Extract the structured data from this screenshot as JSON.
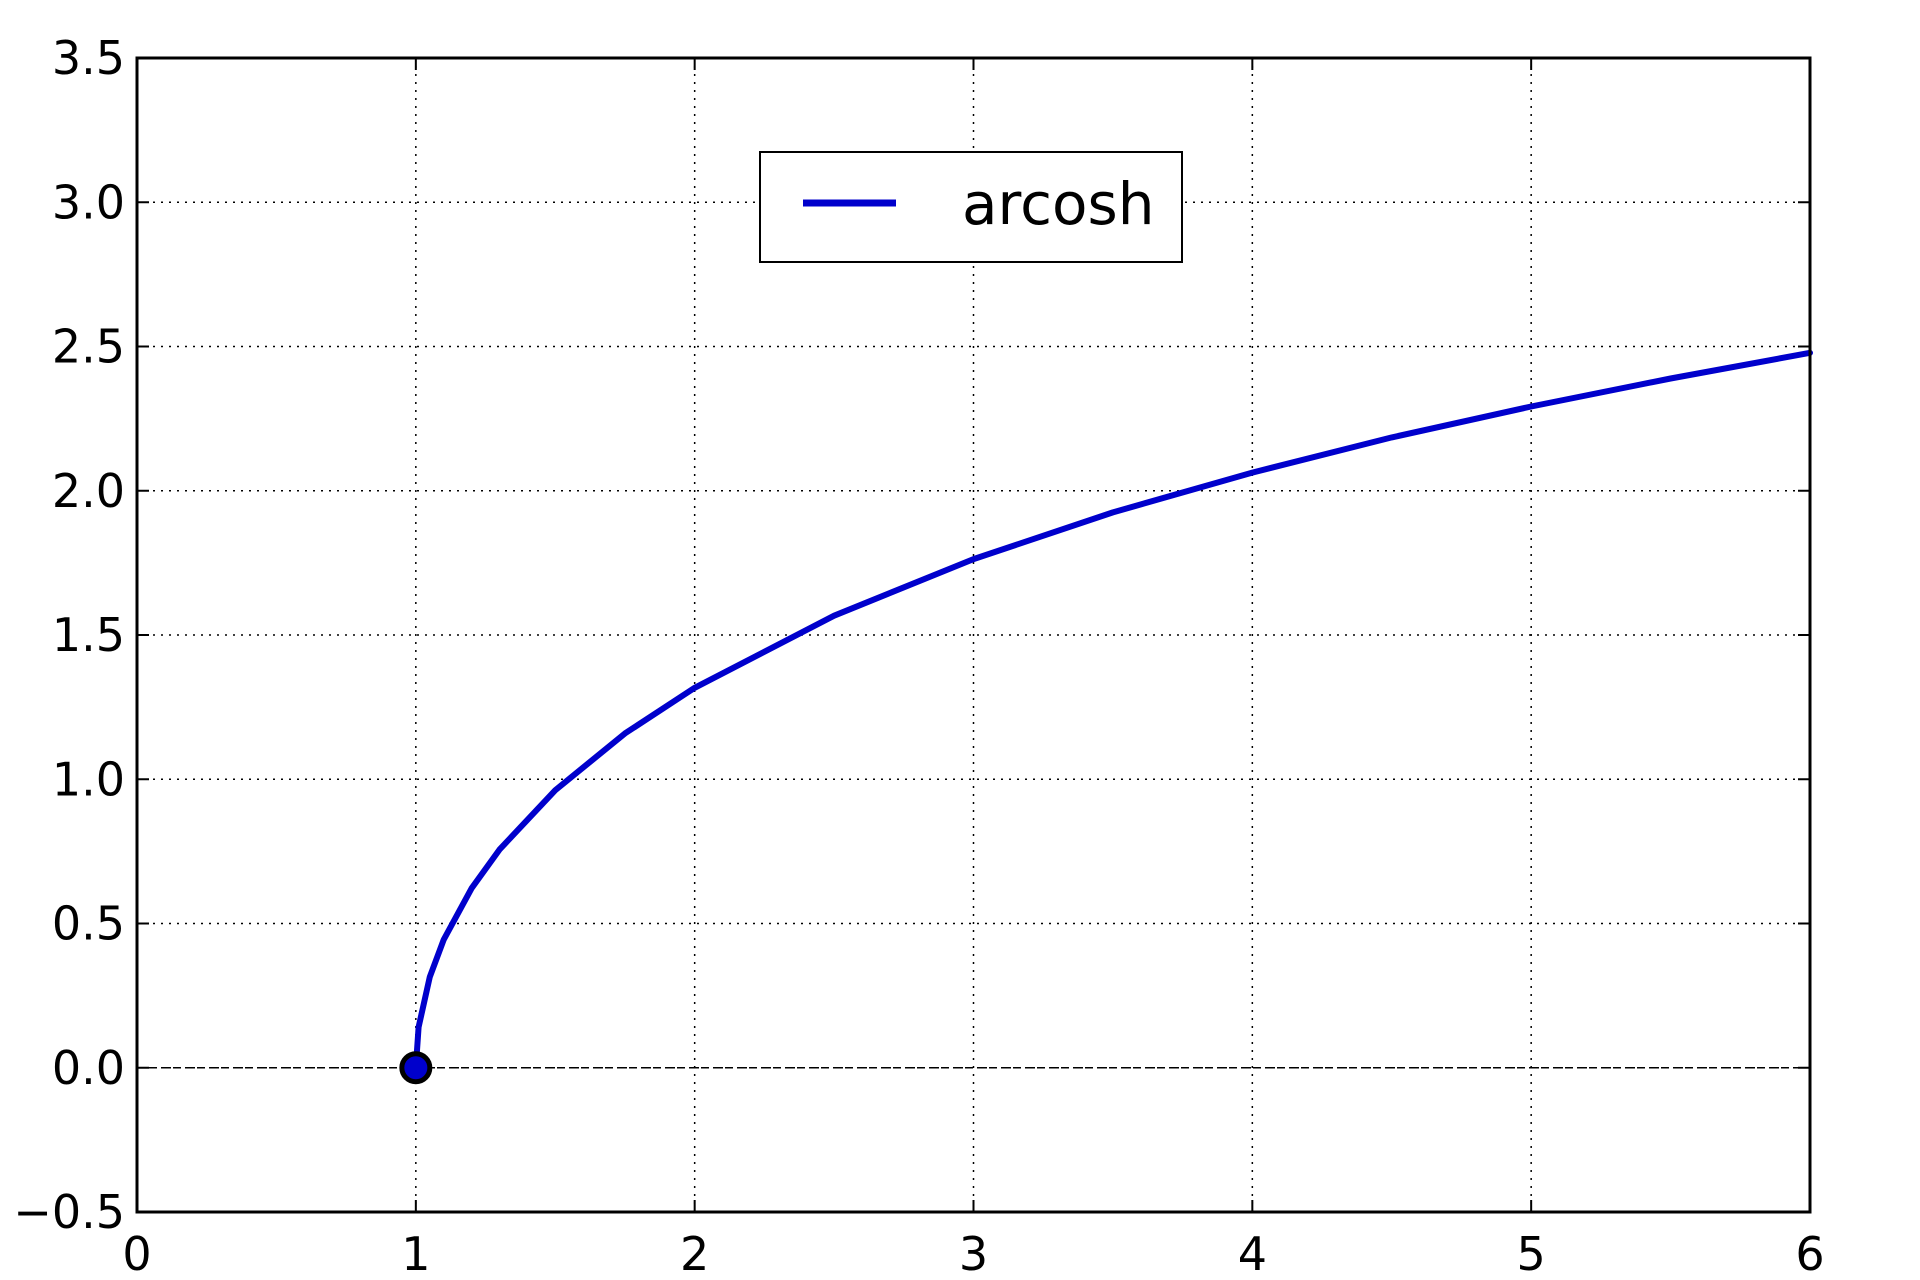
{
  "chart_data": {
    "type": "line",
    "title": "",
    "xlabel": "",
    "ylabel": "",
    "xlim": [
      0,
      6
    ],
    "ylim": [
      -0.5,
      3.5
    ],
    "grid": true,
    "legend_position": "top-center",
    "x_ticks": [
      0,
      1,
      2,
      3,
      4,
      5,
      6
    ],
    "x_tick_labels": [
      "0",
      "1",
      "2",
      "3",
      "4",
      "5",
      "6"
    ],
    "y_ticks": [
      -0.5,
      0.0,
      0.5,
      1.0,
      1.5,
      2.0,
      2.5,
      3.0,
      3.5
    ],
    "y_tick_labels": [
      "−0.5",
      "0.0",
      "0.5",
      "1.0",
      "1.5",
      "2.0",
      "2.5",
      "3.0",
      "3.5"
    ],
    "reference_line_y": 0.0,
    "series": [
      {
        "name": "arcosh",
        "color": "#0000cc",
        "x": [
          1.0,
          1.01,
          1.05,
          1.1,
          1.2,
          1.3,
          1.5,
          1.75,
          2.0,
          2.5,
          3.0,
          3.5,
          4.0,
          4.5,
          5.0,
          5.5,
          6.0
        ],
        "y": [
          0.0,
          0.141,
          0.315,
          0.444,
          0.622,
          0.756,
          0.962,
          1.159,
          1.317,
          1.567,
          1.763,
          1.925,
          2.063,
          2.185,
          2.292,
          2.389,
          2.478
        ]
      }
    ],
    "markers": [
      {
        "x": 1.0,
        "y": 0.0,
        "fill": "#0000cc",
        "edge": "#000000"
      }
    ]
  }
}
